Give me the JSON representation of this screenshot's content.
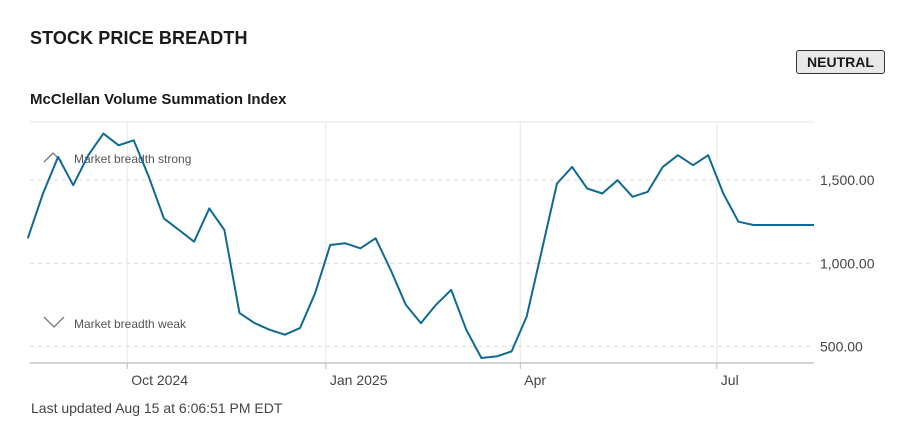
{
  "header": {
    "title": "STOCK PRICE BREADTH",
    "status_badge": "NEUTRAL"
  },
  "chart_title": "McClellan Volume Summation Index",
  "footnote": "Last updated Aug 15 at 6:06:51 PM EDT",
  "annotations": {
    "strong": "Market breadth strong",
    "weak": "Market breadth weak"
  },
  "colors": {
    "line": "#0e6a94",
    "grid": "#e6e6e6",
    "axis": "#bbbbbb",
    "badge_bg": "#e8e8e8"
  },
  "icons": {
    "strong": "chevron-up-icon",
    "weak": "chevron-down-icon"
  },
  "chart_data": {
    "type": "line",
    "title": "McClellan Volume Summation Index",
    "xlabel": "",
    "ylabel": "",
    "ylim": [
      400,
      1850
    ],
    "xlim": [
      "2025-08-17",
      "2025-08-15"
    ],
    "x_ticks": [
      {
        "date": "2024-10-01",
        "label": "Oct 2024"
      },
      {
        "date": "2025-01-01",
        "label": "Jan 2025"
      },
      {
        "date": "2025-04-01",
        "label": "Apr"
      },
      {
        "date": "2025-07-01",
        "label": "Jul"
      }
    ],
    "y_ticks": [
      {
        "value": 500,
        "label": "500.00"
      },
      {
        "value": 1000,
        "label": "1,000.00"
      },
      {
        "value": 1500,
        "label": "1,500.00"
      }
    ],
    "grid": true,
    "series": [
      {
        "x": [
          "2024-08-16",
          "2024-08-23",
          "2024-08-30",
          "2024-09-06",
          "2024-09-13",
          "2024-09-20",
          "2024-09-27",
          "2024-10-04",
          "2024-10-11",
          "2024-10-18",
          "2024-10-25",
          "2024-11-01",
          "2024-11-08",
          "2024-11-15",
          "2024-11-22",
          "2024-11-29",
          "2024-12-06",
          "2024-12-13",
          "2024-12-20",
          "2024-12-27",
          "2025-01-03",
          "2025-01-10",
          "2025-01-17",
          "2025-01-24",
          "2025-01-31",
          "2025-02-07",
          "2025-02-14",
          "2025-02-21",
          "2025-02-28",
          "2025-03-07",
          "2025-03-14",
          "2025-03-21",
          "2025-03-28",
          "2025-04-04",
          "2025-04-11",
          "2025-04-18",
          "2025-04-25",
          "2025-05-02",
          "2025-05-09",
          "2025-05-16",
          "2025-05-23",
          "2025-05-30",
          "2025-06-06",
          "2025-06-13",
          "2025-06-20",
          "2025-06-27",
          "2025-07-04",
          "2025-07-11",
          "2025-07-18",
          "2025-07-25",
          "2025-08-01",
          "2025-08-08",
          "2025-08-15"
        ],
        "values": [
          1150,
          1420,
          1640,
          1470,
          1650,
          1780,
          1710,
          1740,
          1520,
          1270,
          1200,
          1130,
          1330,
          1200,
          700,
          640,
          600,
          570,
          610,
          820,
          1110,
          1120,
          1090,
          1150,
          960,
          750,
          640,
          750,
          840,
          600,
          430,
          440,
          470,
          680,
          1080,
          1480,
          1580,
          1450,
          1420,
          1500,
          1400,
          1430,
          1580,
          1650,
          1590,
          1650,
          1420,
          1250,
          1230,
          1230,
          1230,
          1230,
          1230
        ]
      }
    ]
  }
}
